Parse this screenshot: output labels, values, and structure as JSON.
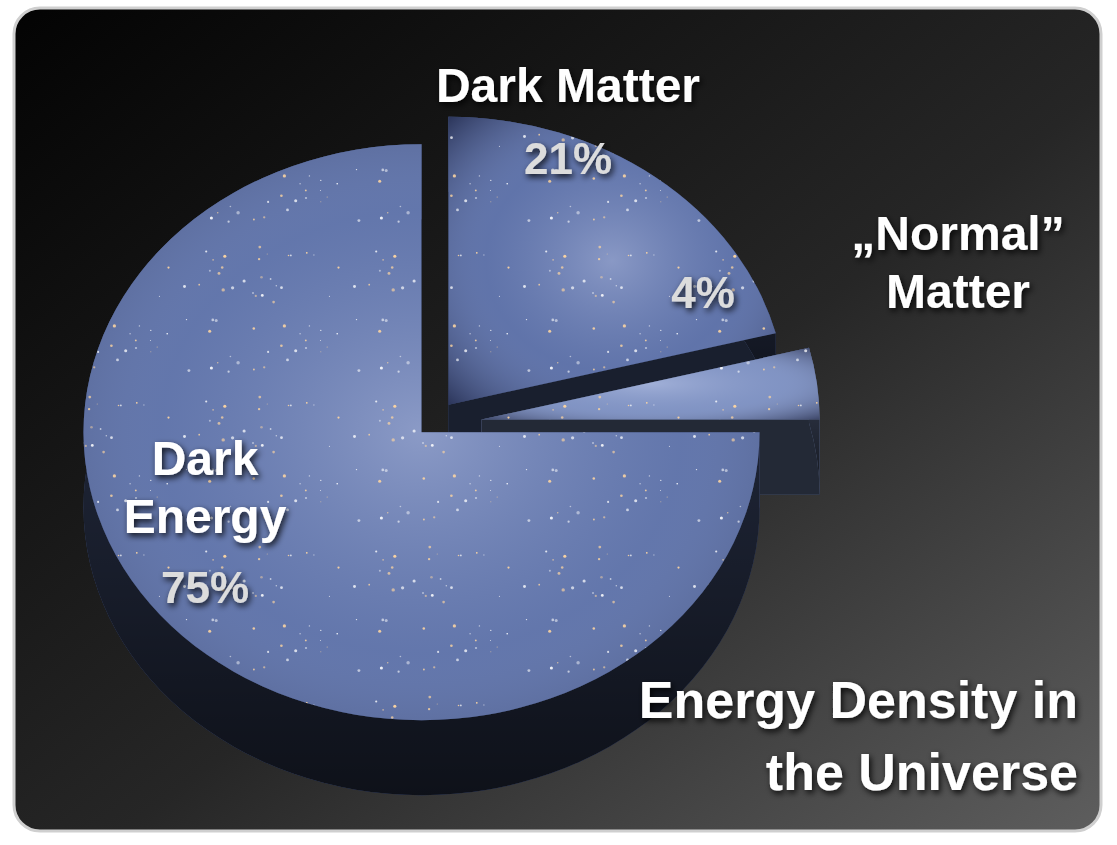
{
  "chart_data": {
    "type": "pie",
    "title": "Energy Density in the Universe",
    "categories": [
      "Dark Matter",
      "„Normal” Matter",
      "Dark Energy"
    ],
    "values": [
      21,
      4,
      75
    ],
    "value_labels": [
      "21%",
      "4%",
      "75%"
    ],
    "colors": [
      "#5b6fa6",
      "#7f92c2",
      "#5e72a8"
    ],
    "data_labels": true
  }
}
